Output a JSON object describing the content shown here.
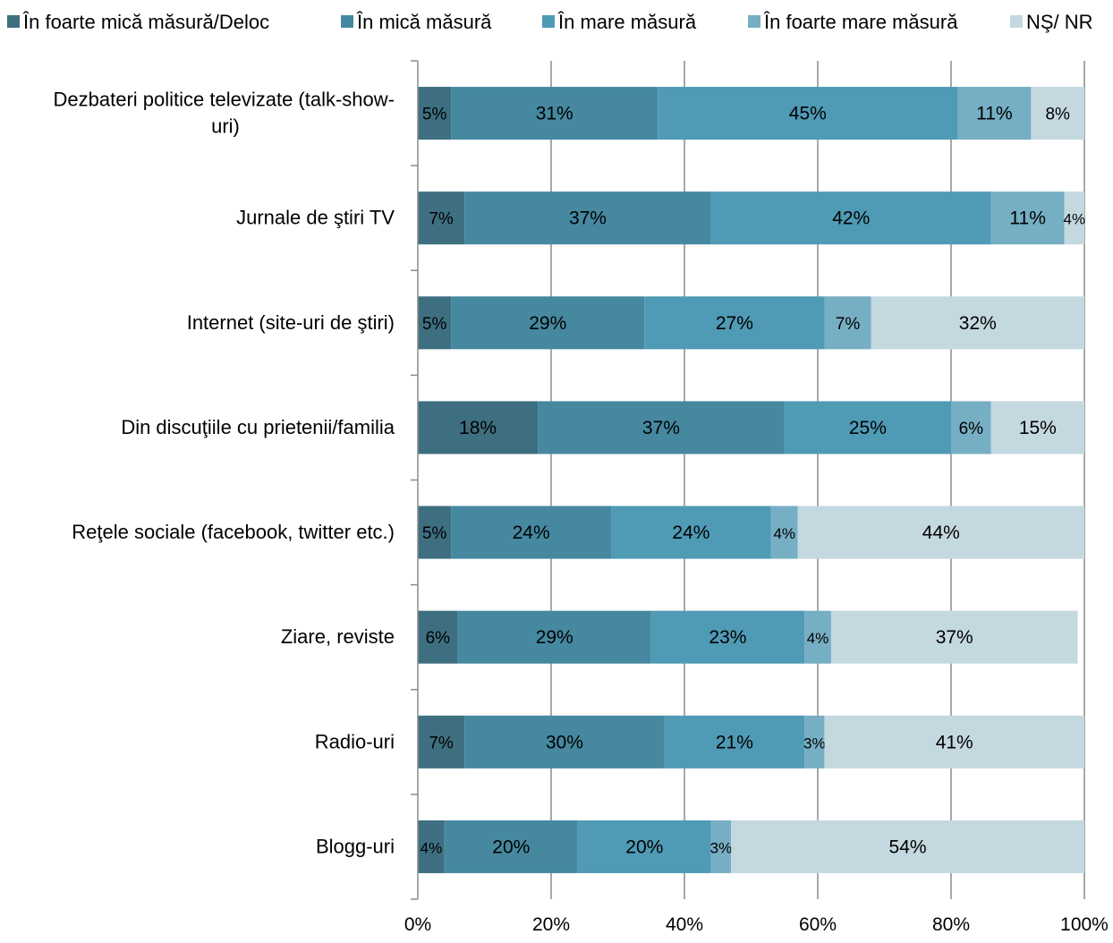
{
  "chart_data": {
    "type": "bar",
    "orientation": "horizontal",
    "stacked": true,
    "categories": [
      "Dezbateri politice televizate (talk-show-uri)",
      "Jurnale de ştiri TV",
      "Internet (site-uri de ştiri)",
      "Din discuţiile cu prietenii/familia",
      "Reţele sociale (facebook, twitter etc.)",
      "Ziare, reviste",
      "Radio-uri",
      "Blogg-uri"
    ],
    "category_lines": [
      [
        "Dezbateri politice televizate (talk-show-",
        "uri)"
      ],
      [
        "Jurnale de ştiri TV"
      ],
      [
        "Internet (site-uri de ştiri)"
      ],
      [
        "Din discuţiile cu prietenii/familia"
      ],
      [
        "Reţele sociale (facebook, twitter etc.)"
      ],
      [
        "Ziare, reviste"
      ],
      [
        "Radio-uri"
      ],
      [
        "Blogg-uri"
      ]
    ],
    "series": [
      {
        "name": "În foarte mică măsură/Deloc",
        "color": "#3E6F80",
        "values": [
          5,
          7,
          5,
          18,
          5,
          6,
          7,
          4
        ],
        "labels": [
          "5%",
          "7%",
          "5%",
          "18%",
          "5%",
          "6%",
          "7%",
          "4%"
        ]
      },
      {
        "name": "În mică măsură",
        "color": "#4588A0",
        "values": [
          31,
          37,
          29,
          37,
          24,
          29,
          30,
          20
        ],
        "labels": [
          "31%",
          "37%",
          "29%",
          "37%",
          "24%",
          "29%",
          "30%",
          "20%"
        ]
      },
      {
        "name": "În mare măsură",
        "color": "#4F9AB5",
        "values": [
          45,
          42,
          27,
          25,
          24,
          23,
          21,
          20
        ],
        "labels": [
          "45%",
          "42%",
          "27%",
          "25%",
          "24%",
          "23%",
          "21%",
          "20%"
        ]
      },
      {
        "name": "În foarte mare măsură",
        "color": "#76AEC4",
        "values": [
          11,
          11,
          7,
          6,
          4,
          4,
          3,
          3
        ],
        "labels": [
          "11%",
          "11%",
          "7%",
          "6%",
          "4%",
          "4%",
          "3%",
          "3%"
        ]
      },
      {
        "name": "NŞ/ NR",
        "color": "#C4D8E0",
        "values": [
          8,
          4,
          32,
          15,
          44,
          37,
          41,
          54
        ],
        "labels": [
          "8%",
          "4%",
          "32%",
          "15%",
          "44%",
          "37%",
          "41%",
          "54%"
        ]
      }
    ],
    "x_ticks": [
      "0%",
      "20%",
      "40%",
      "60%",
      "80%",
      "100%"
    ],
    "xlim": [
      0,
      100
    ],
    "grid": true,
    "legend": "top"
  }
}
